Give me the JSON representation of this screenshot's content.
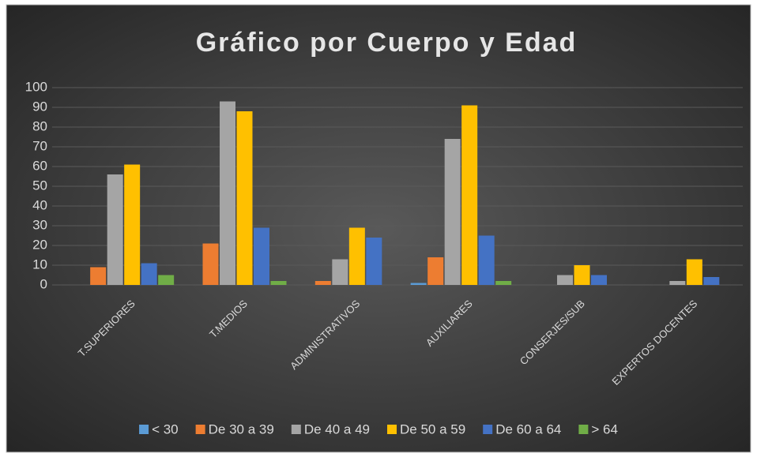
{
  "chart_data": {
    "type": "bar",
    "title": "Gráfico por Cuerpo y Edad",
    "categories": [
      "T.SUPERIORES",
      "T.MEDIOS",
      "ADMINISTRATIVOS",
      "AUXILIARES",
      "CONSERJES/SUB",
      "EXPERTOS DOCENTES"
    ],
    "series": [
      {
        "name": "< 30",
        "color": "#5b9bd5",
        "values": [
          0,
          0,
          0,
          1,
          0,
          0
        ]
      },
      {
        "name": "De 30 a 39",
        "color": "#ed7d31",
        "values": [
          9,
          21,
          2,
          14,
          0,
          0
        ]
      },
      {
        "name": "De 40 a 49",
        "color": "#a5a5a5",
        "values": [
          56,
          93,
          13,
          74,
          5,
          2
        ]
      },
      {
        "name": "De 50 a 59",
        "color": "#ffc000",
        "values": [
          61,
          88,
          29,
          91,
          10,
          13
        ]
      },
      {
        "name": "De 60 a 64",
        "color": "#4472c4",
        "values": [
          11,
          29,
          24,
          25,
          5,
          4
        ]
      },
      {
        "name": "> 64",
        "color": "#70ad47",
        "values": [
          5,
          2,
          0,
          2,
          0,
          0
        ]
      }
    ],
    "ylim": [
      0,
      100
    ],
    "yticks": [
      0,
      10,
      20,
      30,
      40,
      50,
      60,
      70,
      80,
      90,
      100
    ],
    "grid": true,
    "legend": "bottom"
  }
}
